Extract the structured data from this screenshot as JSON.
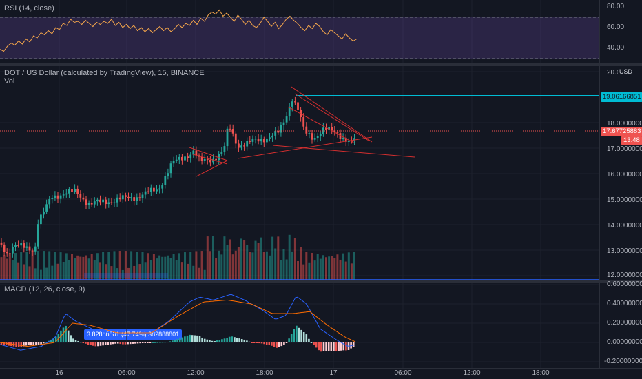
{
  "rsi": {
    "legend": "RSI (14, close)",
    "ticks": [
      "80.00",
      "60.00",
      "40.00"
    ],
    "band": [
      30,
      70
    ],
    "values": [
      39,
      37,
      42,
      45,
      43,
      47,
      44,
      49,
      46,
      52,
      50,
      55,
      53,
      57,
      54,
      60,
      58,
      64,
      62,
      68,
      65,
      66,
      63,
      67,
      64,
      61,
      65,
      63,
      66,
      64,
      68,
      62,
      65,
      60,
      63,
      59,
      62,
      57,
      60,
      56,
      59,
      55,
      58,
      61,
      57,
      60,
      56,
      59,
      63,
      60,
      64,
      62,
      67,
      63,
      69,
      66,
      72,
      75,
      73,
      77,
      71,
      74,
      70,
      66,
      72,
      68,
      63,
      67,
      62,
      60,
      64,
      70,
      66,
      61,
      65,
      59,
      63,
      68,
      71,
      67,
      64,
      60,
      57,
      62,
      59,
      64,
      61,
      56,
      53,
      58,
      55,
      52,
      49,
      54,
      50,
      47,
      49
    ]
  },
  "price": {
    "legend": "DOT / US Dollar (calculated by TradingView), 15, BINANCE",
    "vol_label": "Vol",
    "currency": "USD",
    "ticks": [
      "20.0",
      "18.00000000",
      "17.00000000",
      "16.00000000",
      "15.00000000",
      "14.00000000",
      "13.00000000",
      "12.00000000"
    ],
    "tick_values": [
      20,
      18,
      17,
      16,
      15,
      14,
      13,
      12
    ],
    "resistance_label": "19.06166851",
    "resistance_value": 19.06166851,
    "last_price_label": "17.67725883",
    "last_price_value": 17.67725883,
    "countdown_label": "13:48",
    "colors": {
      "up": "#26a69a",
      "down": "#ef5350",
      "resistance": "#00bcd4",
      "pattern": "#d32f2f"
    }
  },
  "measure": {
    "label": "3.82888801 (47.74%) 382888801"
  },
  "macd": {
    "legend": "MACD (12, 26, close, 9)",
    "ticks": [
      "0.60000000",
      "0.40000000",
      "0.20000000",
      "0.00000000",
      "-0.20000000"
    ],
    "tick_values": [
      0.6,
      0.4,
      0.2,
      0,
      -0.2
    ]
  },
  "time_axis": [
    "16",
    "06:00",
    "12:00",
    "18:00",
    "17",
    "06:00",
    "12:00",
    "18:00"
  ]
}
